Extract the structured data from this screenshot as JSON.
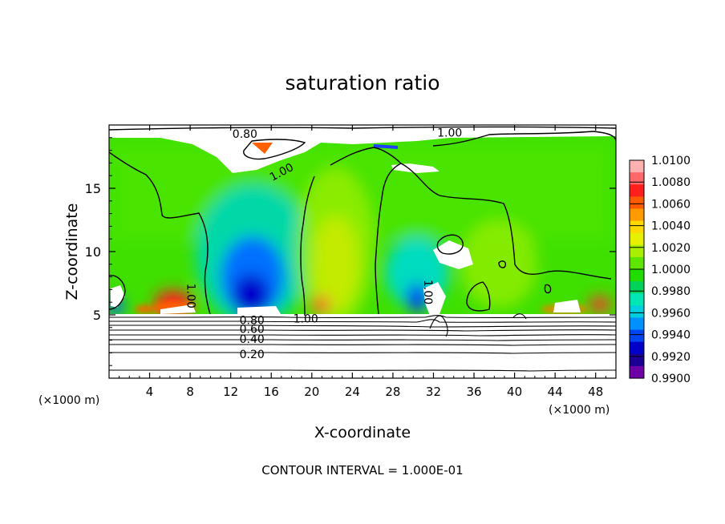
{
  "chart_data": {
    "type": "heatmap",
    "title": "saturation ratio",
    "xlabel": "X-coordinate",
    "ylabel": "Z-coordinate",
    "x_unit_label": "(×1000 m)",
    "x_unit_label_right": "(×1000 m)",
    "footer": "CONTOUR INTERVAL = 1.000E-01",
    "xlim": [
      0,
      50
    ],
    "ylim": [
      0,
      20
    ],
    "x_ticks": [
      4,
      8,
      12,
      16,
      20,
      24,
      28,
      32,
      36,
      40,
      44,
      48
    ],
    "y_ticks": [
      5,
      10,
      15
    ],
    "colorbar": {
      "ticks": [
        "1.0100",
        "1.0080",
        "1.0060",
        "1.0040",
        "1.0020",
        "1.0000",
        "0.9980",
        "0.9960",
        "0.9940",
        "0.9920",
        "0.9900"
      ],
      "colors": [
        "#ffb0b0",
        "#ff6868",
        "#ff1e1e",
        "#ff5a00",
        "#ff9a00",
        "#ffd800",
        "#e6f000",
        "#a8f000",
        "#5ee600",
        "#22dc00",
        "#00d25a",
        "#00e6b4",
        "#00cfe0",
        "#0090ff",
        "#0046f0",
        "#0000c8",
        "#1c0096",
        "#6e00a8"
      ]
    },
    "contour_labels": [
      {
        "text": "0.80",
        "x": 13.4,
        "z": 19.3
      },
      {
        "text": "1.00",
        "x": 33.6,
        "z": 19.4
      },
      {
        "text": "1.00",
        "x": 17.0,
        "z": 16.3
      },
      {
        "text": "1.00",
        "x": 8.1,
        "z": 6.5
      },
      {
        "text": "1.00",
        "x": 31.5,
        "z": 6.8
      },
      {
        "text": "1.00",
        "x": 19.4,
        "z": 4.7
      },
      {
        "text": "0.80",
        "x": 14.1,
        "z": 4.6
      },
      {
        "text": "0.60",
        "x": 14.1,
        "z": 3.9
      },
      {
        "text": "0.40",
        "x": 14.1,
        "z": 3.1
      },
      {
        "text": "0.20",
        "x": 14.1,
        "z": 1.9
      }
    ],
    "contour_lines_z": [
      0.6,
      1.9,
      2.5,
      3.1,
      3.5,
      3.9,
      4.3,
      4.6,
      4.9
    ]
  }
}
